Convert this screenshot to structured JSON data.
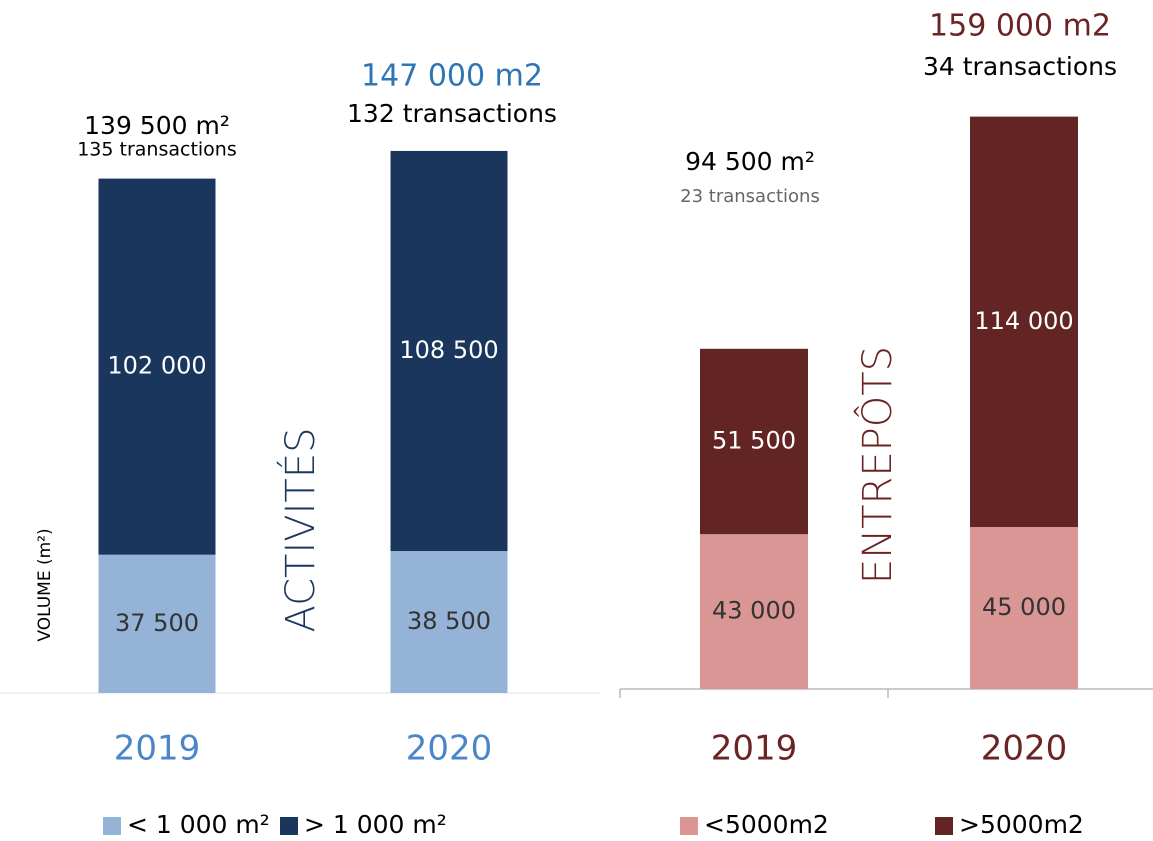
{
  "chart_data": [
    {
      "type": "bar",
      "stacked": true,
      "categories": [
        "2019",
        "2020"
      ],
      "series": [
        {
          "name": "< 1 000 m²",
          "color": "#95b3d7",
          "values": [
            37500,
            38500
          ],
          "value_labels": [
            "37 500",
            "38 500"
          ]
        },
        {
          "name": "> 1 000 m²",
          "color": "#1b365d",
          "values": [
            102000,
            108500
          ],
          "value_labels": [
            "102 000",
            "108 500"
          ]
        }
      ],
      "totals": [
        "139 500 m²",
        "147 000 m2"
      ],
      "total_colors": [
        "#000000",
        "#2e75b6"
      ],
      "transactions": [
        "135 transactions",
        "132 transactions"
      ],
      "side_label": "ACTIVITÉS",
      "side_color": "#1b365d",
      "category_color": "#4a86c8",
      "ylabel": "VOLUME (m²)",
      "ylim": [
        0,
        160000
      ]
    },
    {
      "type": "bar",
      "stacked": true,
      "categories": [
        "2019",
        "2020"
      ],
      "series": [
        {
          "name": "<5000m2",
          "color": "#d99694",
          "values": [
            43000,
            45000
          ],
          "value_labels": [
            "43 000",
            "45 000"
          ]
        },
        {
          "name": ">5000m2",
          "color": "#632523",
          "values": [
            51500,
            114000
          ],
          "value_labels": [
            "51 500",
            "114 000"
          ]
        }
      ],
      "totals": [
        "94 500 m²",
        "159 000 m2"
      ],
      "total_colors": [
        "#000000",
        "#6b2424"
      ],
      "transactions": [
        "23 transactions",
        "34 transactions"
      ],
      "side_label": "ENTREPÔTS",
      "side_color": "#6b2424",
      "category_color": "#6b2424",
      "ylim": [
        0,
        165000
      ]
    }
  ]
}
